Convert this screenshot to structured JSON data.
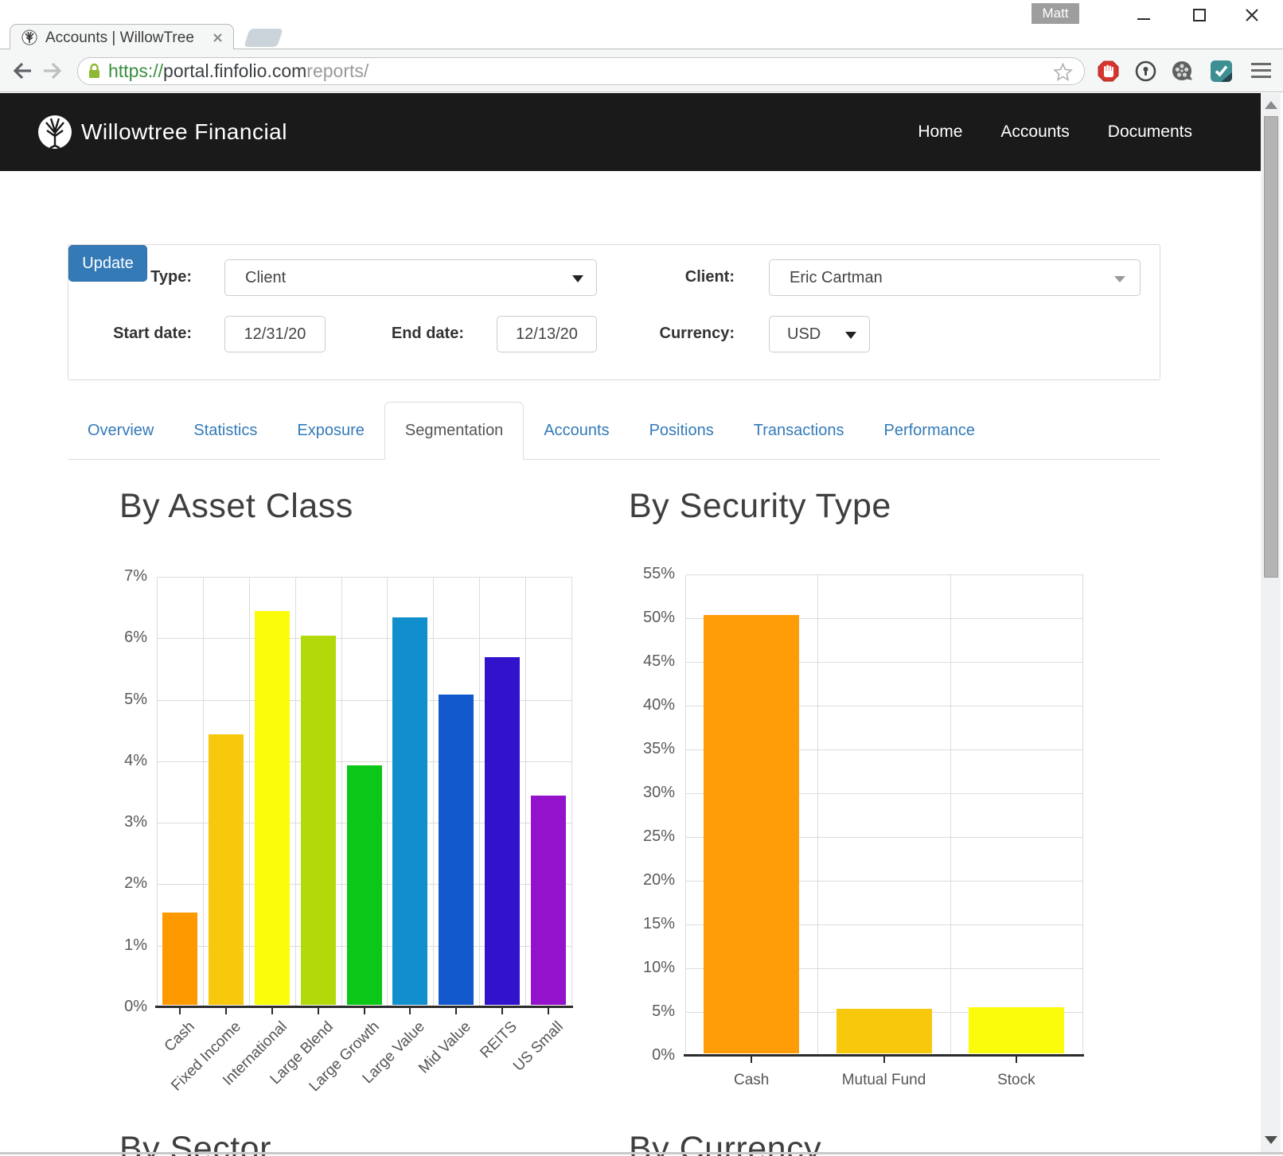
{
  "window": {
    "user_badge": "Matt"
  },
  "browser": {
    "tab_title": "Accounts | WillowTree",
    "url_scheme": "https://",
    "url_host": "portal.finfolio.com",
    "url_path": "reports/"
  },
  "navbar": {
    "brand": "Willowtree Financial",
    "links": [
      "Home",
      "Accounts",
      "Documents"
    ]
  },
  "filters": {
    "type_label": "Type:",
    "type_value": "Client",
    "client_label": "Client:",
    "client_value": "Eric Cartman",
    "start_label": "Start date:",
    "start_value": "12/31/20",
    "end_label": "End date:",
    "end_value": "12/13/20",
    "currency_label": "Currency:",
    "currency_value": "USD",
    "update_label": "Update"
  },
  "tabs": {
    "items": [
      "Overview",
      "Statistics",
      "Exposure",
      "Segmentation",
      "Accounts",
      "Positions",
      "Transactions",
      "Performance"
    ],
    "active": "Segmentation"
  },
  "colors": {
    "accent_blue": "#337ab7",
    "navbar_black": "#1a1a1a"
  },
  "sections": {
    "next_left_title": "By Sector",
    "next_right_title": "By Currency"
  },
  "chart_data": [
    {
      "type": "bar",
      "title": "By Asset Class",
      "categories": [
        "Cash",
        "Fixed Income",
        "International",
        "Large Blend",
        "Large Growth",
        "Large Value",
        "Mid Value",
        "REITS",
        "US Small"
      ],
      "values": [
        1.5,
        4.4,
        6.4,
        6.0,
        3.9,
        6.3,
        5.05,
        5.65,
        3.4
      ],
      "colors": [
        "#ff9900",
        "#f8c80d",
        "#fbfb0c",
        "#b2da0b",
        "#0bc718",
        "#118fcd",
        "#1159cd",
        "#3212cb",
        "#9412cb"
      ],
      "unit": "%",
      "ylim": [
        0,
        7
      ],
      "ytick_step": 1,
      "grid": true,
      "xlabel_rotated": true
    },
    {
      "type": "bar",
      "title": "By Security Type",
      "categories": [
        "Cash",
        "Mutual Fund",
        "Stock"
      ],
      "values": [
        50.1,
        5.1,
        5.25
      ],
      "colors": [
        "#ff9d09",
        "#f8c80d",
        "#fbfb0c"
      ],
      "unit": "%",
      "ylim": [
        0,
        55
      ],
      "ytick_step": 5,
      "grid": true,
      "xlabel_rotated": false
    }
  ]
}
